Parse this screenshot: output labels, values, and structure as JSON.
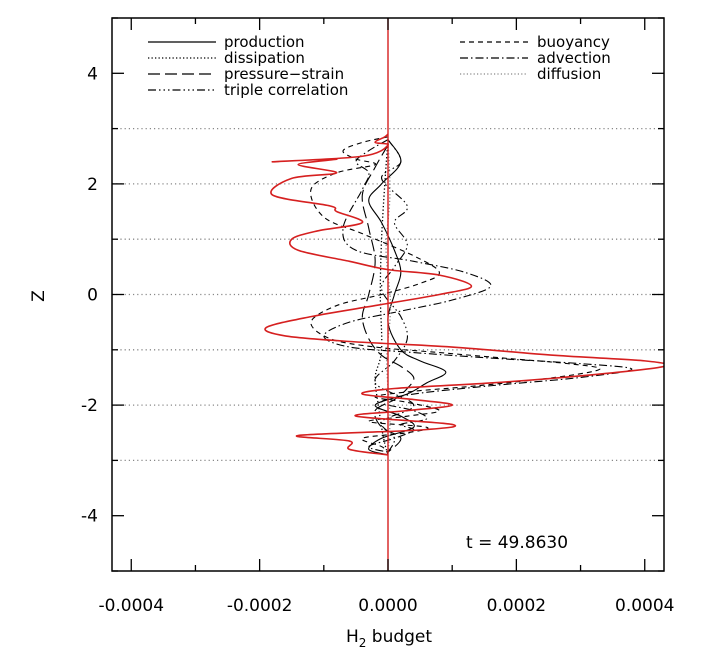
{
  "chart_data": {
    "type": "line",
    "title": "",
    "xlabel_main": "H",
    "xlabel_sub": "2",
    "xlabel_rest": " budget",
    "ylabel": "Z",
    "xlim": [
      -0.00043,
      0.00043
    ],
    "ylim": [
      -5,
      5
    ],
    "x_ticks": [
      -0.0004,
      -0.0002,
      0.0,
      0.0002,
      0.0004
    ],
    "x_tick_labels": [
      "-0.0004",
      "-0.0002",
      "0.0000",
      "0.0002",
      "0.0004"
    ],
    "y_ticks": [
      -4,
      -2,
      0,
      2,
      4
    ],
    "y_tick_labels": [
      "-4",
      "-2",
      "0",
      "2",
      "4"
    ],
    "reference_lines_z": [
      -3,
      -2,
      -1,
      0,
      1,
      2,
      3
    ],
    "annotation": "t  =  49.8630",
    "colors": {
      "total": "#d62020",
      "series": "#000000",
      "reference": "#888888"
    },
    "legend": [
      {
        "label": "production",
        "style": "solid",
        "column": 0
      },
      {
        "label": "dissipation",
        "style": "dotted",
        "column": 0
      },
      {
        "label": "pressure−strain",
        "style": "longdash",
        "column": 0
      },
      {
        "label": "triple correlation",
        "style": "dashdotdotdot",
        "column": 0
      },
      {
        "label": "buoyancy",
        "style": "dashed",
        "column": 1
      },
      {
        "label": "advection",
        "style": "dashdot",
        "column": 1
      },
      {
        "label": "diffusion",
        "style": "gray-dotted",
        "column": 1
      }
    ],
    "series": [
      {
        "name": "total",
        "style": "red",
        "x": [
          0,
          -5e-06,
          -2e-05,
          0,
          -4e-05,
          -0.00018,
          -8e-05,
          -0.00014,
          -8e-05,
          -0.00015,
          -0.00018,
          -9e-05,
          -8e-05,
          -4e-05,
          -0.00011,
          -0.00015,
          -0.00014,
          -6e-05,
          0,
          8e-05,
          0.00013,
          8e-05,
          -2e-05,
          -0.00012,
          -0.00019,
          -0.00016,
          -6e-05,
          0.0001,
          0.00026,
          0.0004,
          0.00043,
          0.00032,
          0.00016,
          1e-05,
          -4e-05,
          4e-05,
          0.0001,
          3e-05,
          -5e-05,
          0.0001,
          5e-05,
          -0.00014,
          -6e-05,
          -6e-05,
          0
        ],
        "y": [
          2.9,
          2.85,
          2.75,
          2.7,
          2.5,
          2.4,
          2.45,
          2.35,
          2.2,
          2.1,
          1.8,
          1.6,
          1.5,
          1.3,
          1.15,
          1.0,
          0.8,
          0.6,
          0.45,
          0.35,
          0.15,
          0.0,
          -0.2,
          -0.4,
          -0.6,
          -0.75,
          -0.85,
          -0.95,
          -1.1,
          -1.2,
          -1.3,
          -1.45,
          -1.6,
          -1.7,
          -1.8,
          -1.9,
          -2.0,
          -2.1,
          -2.2,
          -2.35,
          -2.45,
          -2.55,
          -2.65,
          -2.8,
          -2.9
        ]
      },
      {
        "name": "production",
        "style": "solid",
        "x": [
          0,
          2e-05,
          -1e-05,
          -3e-05,
          -1e-05,
          1e-05,
          2e-05,
          1e-05,
          0,
          2e-05,
          5e-05,
          9e-05,
          6e-05,
          3e-05,
          -2e-05,
          2e-05,
          4e-05,
          -1e-05,
          -3e-05,
          0
        ],
        "y": [
          2.8,
          2.4,
          2.0,
          1.7,
          1.3,
          0.8,
          0.4,
          0.0,
          -0.5,
          -1.0,
          -1.2,
          -1.4,
          -1.6,
          -1.8,
          -2.0,
          -2.2,
          -2.4,
          -2.6,
          -2.8,
          -2.9
        ]
      },
      {
        "name": "buoyancy",
        "style": "dashed",
        "x": [
          0,
          -4e-05,
          -7e-05,
          -5e-05,
          -2e-05,
          -8e-05,
          -0.00012,
          -0.0001,
          -4e-05,
          4e-05,
          8e-05,
          5e-05,
          -1e-05,
          -8e-05,
          -0.00012,
          -9e-05,
          -2e-05,
          8e-05,
          0.00018,
          0.00028,
          0.00033,
          0.00026,
          0.00014,
          4e-05,
          -2e-05,
          3e-05,
          8e-05,
          3e-05,
          -3e-05,
          6e-05,
          3e-05,
          -4e-05,
          -1e-05,
          0
        ],
        "y": [
          2.85,
          2.75,
          2.6,
          2.45,
          2.35,
          2.2,
          1.9,
          1.4,
          1.1,
          0.7,
          0.4,
          0.2,
          0.0,
          -0.2,
          -0.5,
          -0.8,
          -0.95,
          -1.05,
          -1.15,
          -1.25,
          -1.35,
          -1.5,
          -1.65,
          -1.75,
          -1.85,
          -1.95,
          -2.1,
          -2.2,
          -2.3,
          -2.4,
          -2.5,
          -2.6,
          -2.75,
          -2.85
        ]
      },
      {
        "name": "advection",
        "style": "dashdot",
        "x": [
          0,
          -3e-05,
          -5e-05,
          -3e-05,
          -4e-05,
          -7e-05,
          -5e-05,
          4e-05,
          0.00012,
          0.00016,
          0.0001,
          2e-05,
          -6e-05,
          -0.0001,
          -6e-05,
          4e-05,
          0.00016,
          0.0003,
          0.00038,
          0.0003,
          0.00016,
          4e-05,
          -1e-05,
          4e-05,
          6e-05,
          2e-05,
          4e-05,
          1e-05,
          -3e-05,
          0
        ],
        "y": [
          2.8,
          2.6,
          2.4,
          2.2,
          1.9,
          1.2,
          0.8,
          0.6,
          0.4,
          0.15,
          -0.1,
          -0.3,
          -0.5,
          -0.75,
          -0.95,
          -1.05,
          -1.15,
          -1.25,
          -1.35,
          -1.5,
          -1.65,
          -1.8,
          -1.95,
          -2.1,
          -2.25,
          -2.35,
          -2.45,
          -2.6,
          -2.75,
          -2.85
        ]
      },
      {
        "name": "pressure−strain",
        "style": "longdash",
        "x": [
          0,
          -2e-05,
          -4e-05,
          -3e-05,
          -2e-05,
          -3e-05,
          -4e-05,
          -3e-05,
          -1e-05,
          2e-05,
          4e-05,
          3e-05,
          1e-05,
          -2e-05,
          -1e-05,
          2e-05,
          0
        ],
        "y": [
          2.7,
          2.3,
          1.8,
          1.2,
          0.6,
          0.0,
          -0.4,
          -0.8,
          -1.1,
          -1.3,
          -1.5,
          -1.7,
          -1.9,
          -2.1,
          -2.4,
          -2.6,
          -2.85
        ]
      },
      {
        "name": "triple correlation",
        "style": "dashdotdotdot",
        "x": [
          0,
          2e-05,
          -1e-05,
          3e-05,
          1e-05,
          3e-05,
          1e-05,
          -1e-05,
          2e-05,
          3e-05,
          1e-05,
          -2e-05,
          4e-05,
          -1e-05,
          1e-05,
          0
        ],
        "y": [
          2.8,
          2.4,
          2.1,
          1.6,
          1.3,
          0.9,
          0.5,
          0.1,
          -0.4,
          -0.8,
          -1.2,
          -1.6,
          -2.0,
          -2.3,
          -2.6,
          -2.85
        ]
      },
      {
        "name": "dissipation",
        "style": "dotted",
        "x": [
          0,
          -5e-06,
          -1e-05,
          -1.2e-05,
          -1e-05,
          -2e-05,
          -1.5e-05,
          -1e-05,
          -5e-06,
          0
        ],
        "y": [
          2.8,
          2.0,
          1.0,
          0.0,
          -1.0,
          -1.5,
          -2.0,
          -2.4,
          -2.7,
          -2.9
        ]
      },
      {
        "name": "diffusion",
        "style": "gray-dotted",
        "x": [
          0,
          3e-06,
          -3e-06,
          4e-06,
          -2e-06,
          3e-06,
          0
        ],
        "y": [
          2.8,
          1.8,
          0.8,
          -0.2,
          -1.2,
          -2.2,
          -2.9
        ]
      }
    ]
  }
}
